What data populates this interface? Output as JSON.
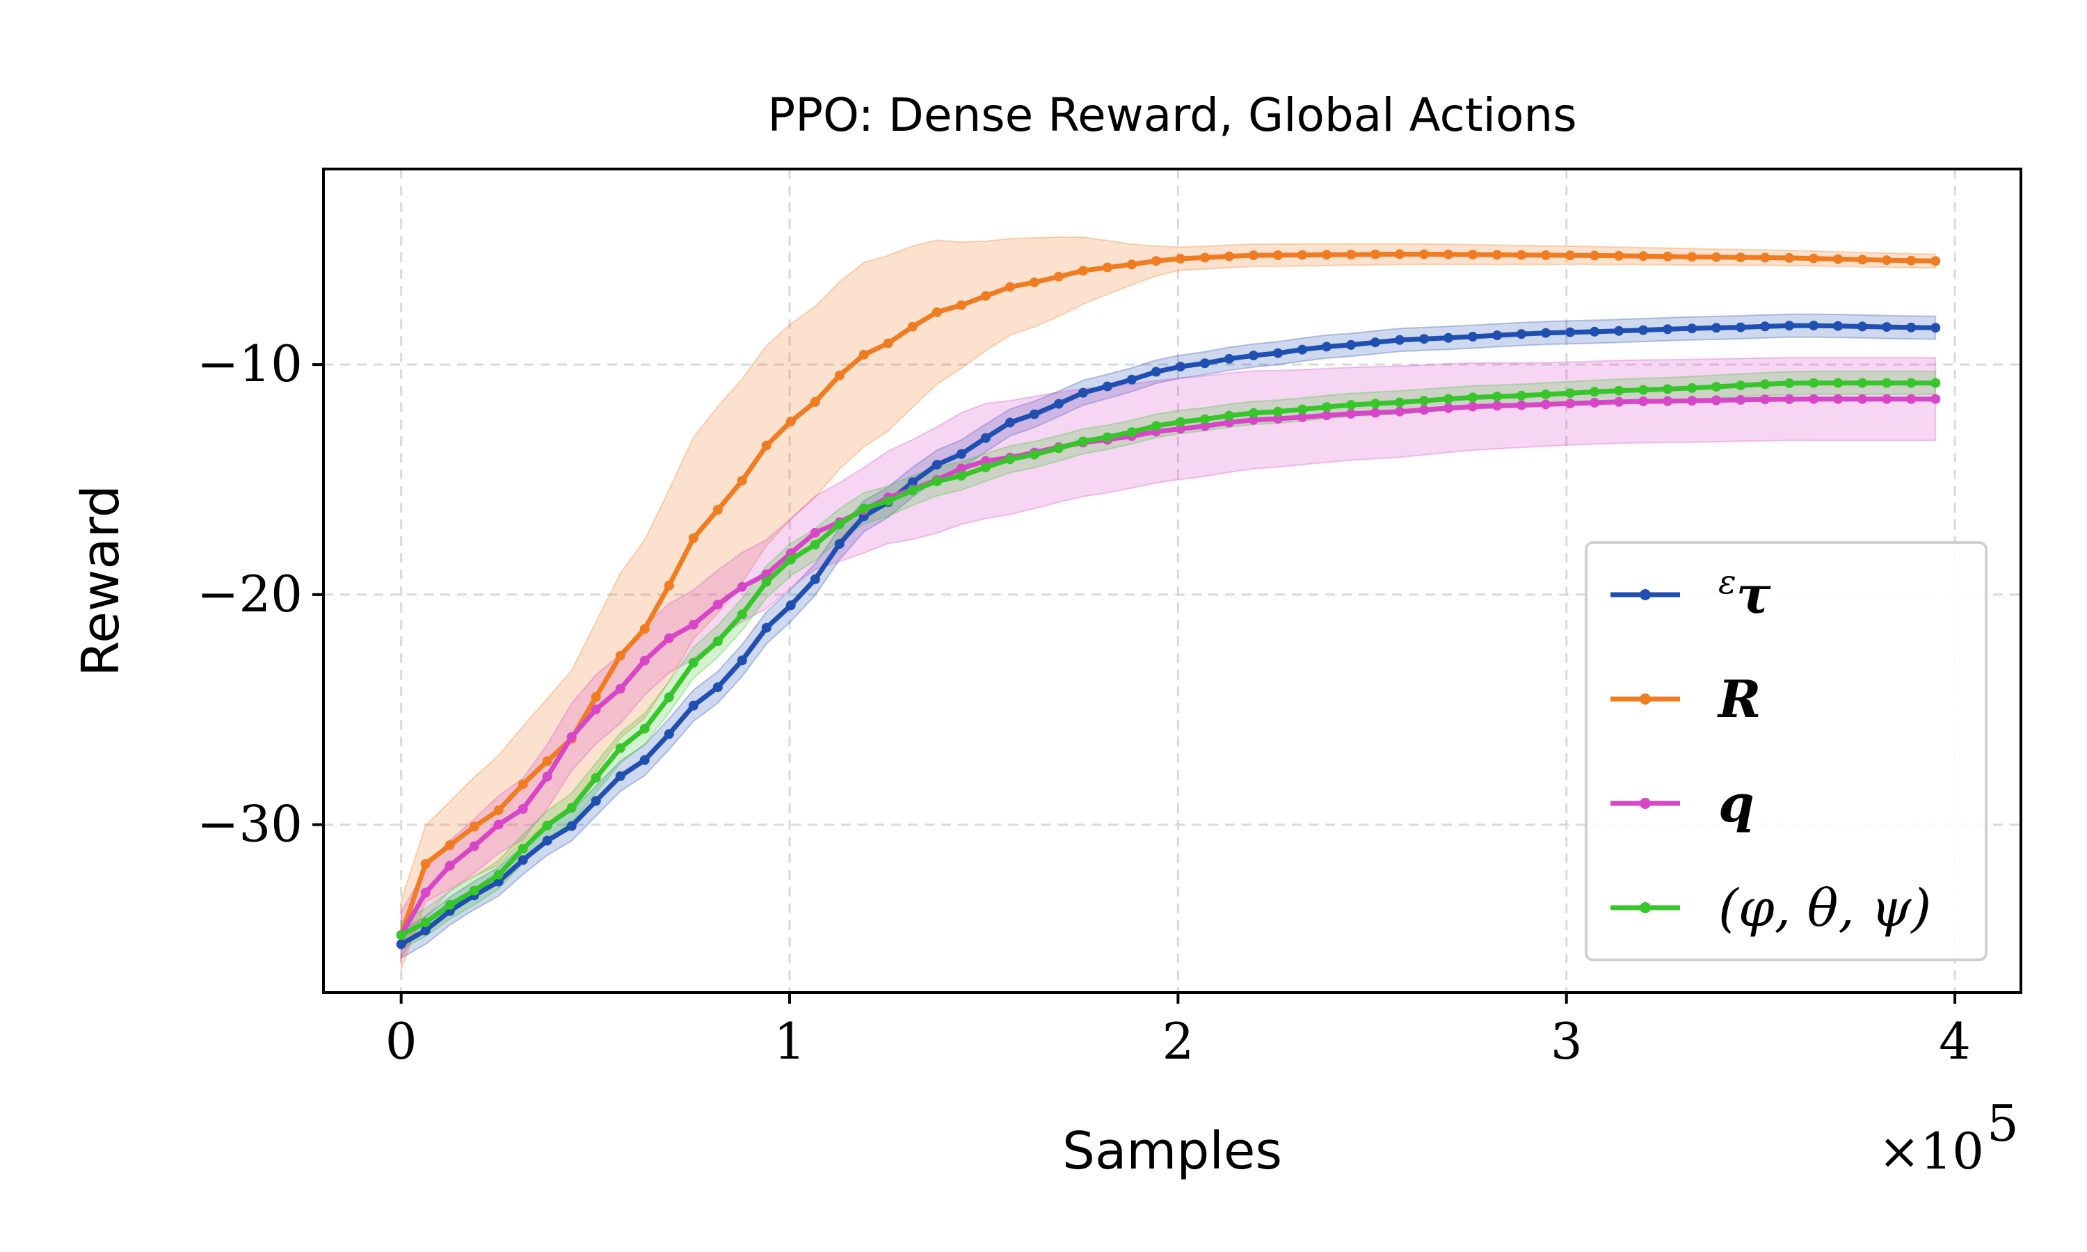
{
  "chart_data": {
    "type": "line",
    "title": "PPO: Dense Reward, Global Actions",
    "xlabel": "Samples",
    "ylabel": "Reward",
    "x_multiplier_label": "×10",
    "x_multiplier_exp": "5",
    "xlim": [
      -0.2,
      4.17
    ],
    "ylim": [
      -37.3,
      -1.5
    ],
    "xticks": [
      0,
      1,
      2,
      3,
      4
    ],
    "xtick_labels": [
      "0",
      "1",
      "2",
      "3",
      "4"
    ],
    "yticks": [
      -10,
      -20,
      -30
    ],
    "ytick_labels": [
      "−10",
      "−20",
      "−30"
    ],
    "grid": true,
    "legend_position": "lower-right",
    "x_range": [
      0,
      3.95
    ],
    "points_per_series": 64,
    "series": [
      {
        "name": "ετ",
        "color": "#1f4fb0",
        "legend_main": "τ",
        "legend_sup": "ε",
        "keypoints": [
          [
            0,
            -35.2
          ],
          [
            0.2,
            -33
          ],
          [
            0.4,
            -30.5
          ],
          [
            0.6,
            -27.5
          ],
          [
            0.8,
            -24.2
          ],
          [
            1.0,
            -20.5
          ],
          [
            1.2,
            -16.5
          ],
          [
            1.4,
            -14.2
          ],
          [
            1.6,
            -12.3
          ],
          [
            1.8,
            -11
          ],
          [
            2.0,
            -10.1
          ],
          [
            2.2,
            -9.6
          ],
          [
            2.4,
            -9.2
          ],
          [
            2.6,
            -8.9
          ],
          [
            3.0,
            -8.6
          ],
          [
            3.4,
            -8.4
          ],
          [
            3.6,
            -8.3
          ],
          [
            3.95,
            -8.4
          ]
        ],
        "band_keypoints": [
          [
            0,
            0.6
          ],
          [
            1.0,
            0.7
          ],
          [
            2.0,
            0.5
          ],
          [
            3.95,
            0.5
          ]
        ]
      },
      {
        "name": "R",
        "color": "#f07c22",
        "legend_main": "R",
        "keypoints": [
          [
            0,
            -34.8
          ],
          [
            0.05,
            -31.8
          ],
          [
            0.2,
            -30
          ],
          [
            0.4,
            -27
          ],
          [
            0.6,
            -22
          ],
          [
            0.8,
            -16.5
          ],
          [
            1.0,
            -12.5
          ],
          [
            1.2,
            -9.5
          ],
          [
            1.4,
            -7.6
          ],
          [
            1.6,
            -6.5
          ],
          [
            1.8,
            -5.8
          ],
          [
            2.0,
            -5.4
          ],
          [
            2.2,
            -5.25
          ],
          [
            2.6,
            -5.2
          ],
          [
            3.0,
            -5.25
          ],
          [
            3.5,
            -5.35
          ],
          [
            3.95,
            -5.5
          ]
        ],
        "band_keypoints": [
          [
            0,
            1.5
          ],
          [
            0.3,
            2.5
          ],
          [
            0.8,
            4.5
          ],
          [
            1.2,
            4.0
          ],
          [
            1.6,
            2.0
          ],
          [
            2.0,
            0.5
          ],
          [
            3.95,
            0.3
          ]
        ]
      },
      {
        "name": "q",
        "color": "#d846c8",
        "legend_main": "q",
        "keypoints": [
          [
            0,
            -34.8
          ],
          [
            0.1,
            -32
          ],
          [
            0.3,
            -29.5
          ],
          [
            0.5,
            -25
          ],
          [
            0.7,
            -21.8
          ],
          [
            0.9,
            -19.5
          ],
          [
            1.1,
            -17
          ],
          [
            1.3,
            -15.5
          ],
          [
            1.5,
            -14.2
          ],
          [
            1.8,
            -13.3
          ],
          [
            2.0,
            -12.8
          ],
          [
            2.2,
            -12.4
          ],
          [
            2.5,
            -12.1
          ],
          [
            2.8,
            -11.8
          ],
          [
            3.2,
            -11.6
          ],
          [
            3.6,
            -11.5
          ],
          [
            3.95,
            -11.5
          ]
        ],
        "band_keypoints": [
          [
            0,
            1.0
          ],
          [
            0.5,
            1.5
          ],
          [
            1.0,
            1.5
          ],
          [
            1.5,
            2.5
          ],
          [
            2.0,
            2.2
          ],
          [
            2.5,
            2.0
          ],
          [
            3.0,
            1.8
          ],
          [
            3.95,
            1.8
          ]
        ]
      },
      {
        "name": "(φ, θ, ψ)",
        "color": "#36c62a",
        "legend_main": "(φ, θ, ψ)",
        "keypoints": [
          [
            0,
            -34.8
          ],
          [
            0.2,
            -32.8
          ],
          [
            0.4,
            -29.8
          ],
          [
            0.6,
            -26.2
          ],
          [
            0.8,
            -22.2
          ],
          [
            1.0,
            -18.5
          ],
          [
            1.2,
            -16.2
          ],
          [
            1.4,
            -15
          ],
          [
            1.6,
            -14
          ],
          [
            1.8,
            -13.2
          ],
          [
            2.0,
            -12.5
          ],
          [
            2.2,
            -12.1
          ],
          [
            2.5,
            -11.7
          ],
          [
            2.8,
            -11.4
          ],
          [
            3.2,
            -11.1
          ],
          [
            3.6,
            -10.8
          ],
          [
            3.95,
            -10.8
          ]
        ],
        "band_keypoints": [
          [
            0,
            0.6
          ],
          [
            1.0,
            0.7
          ],
          [
            2.0,
            0.5
          ],
          [
            3.95,
            0.5
          ]
        ]
      }
    ]
  }
}
